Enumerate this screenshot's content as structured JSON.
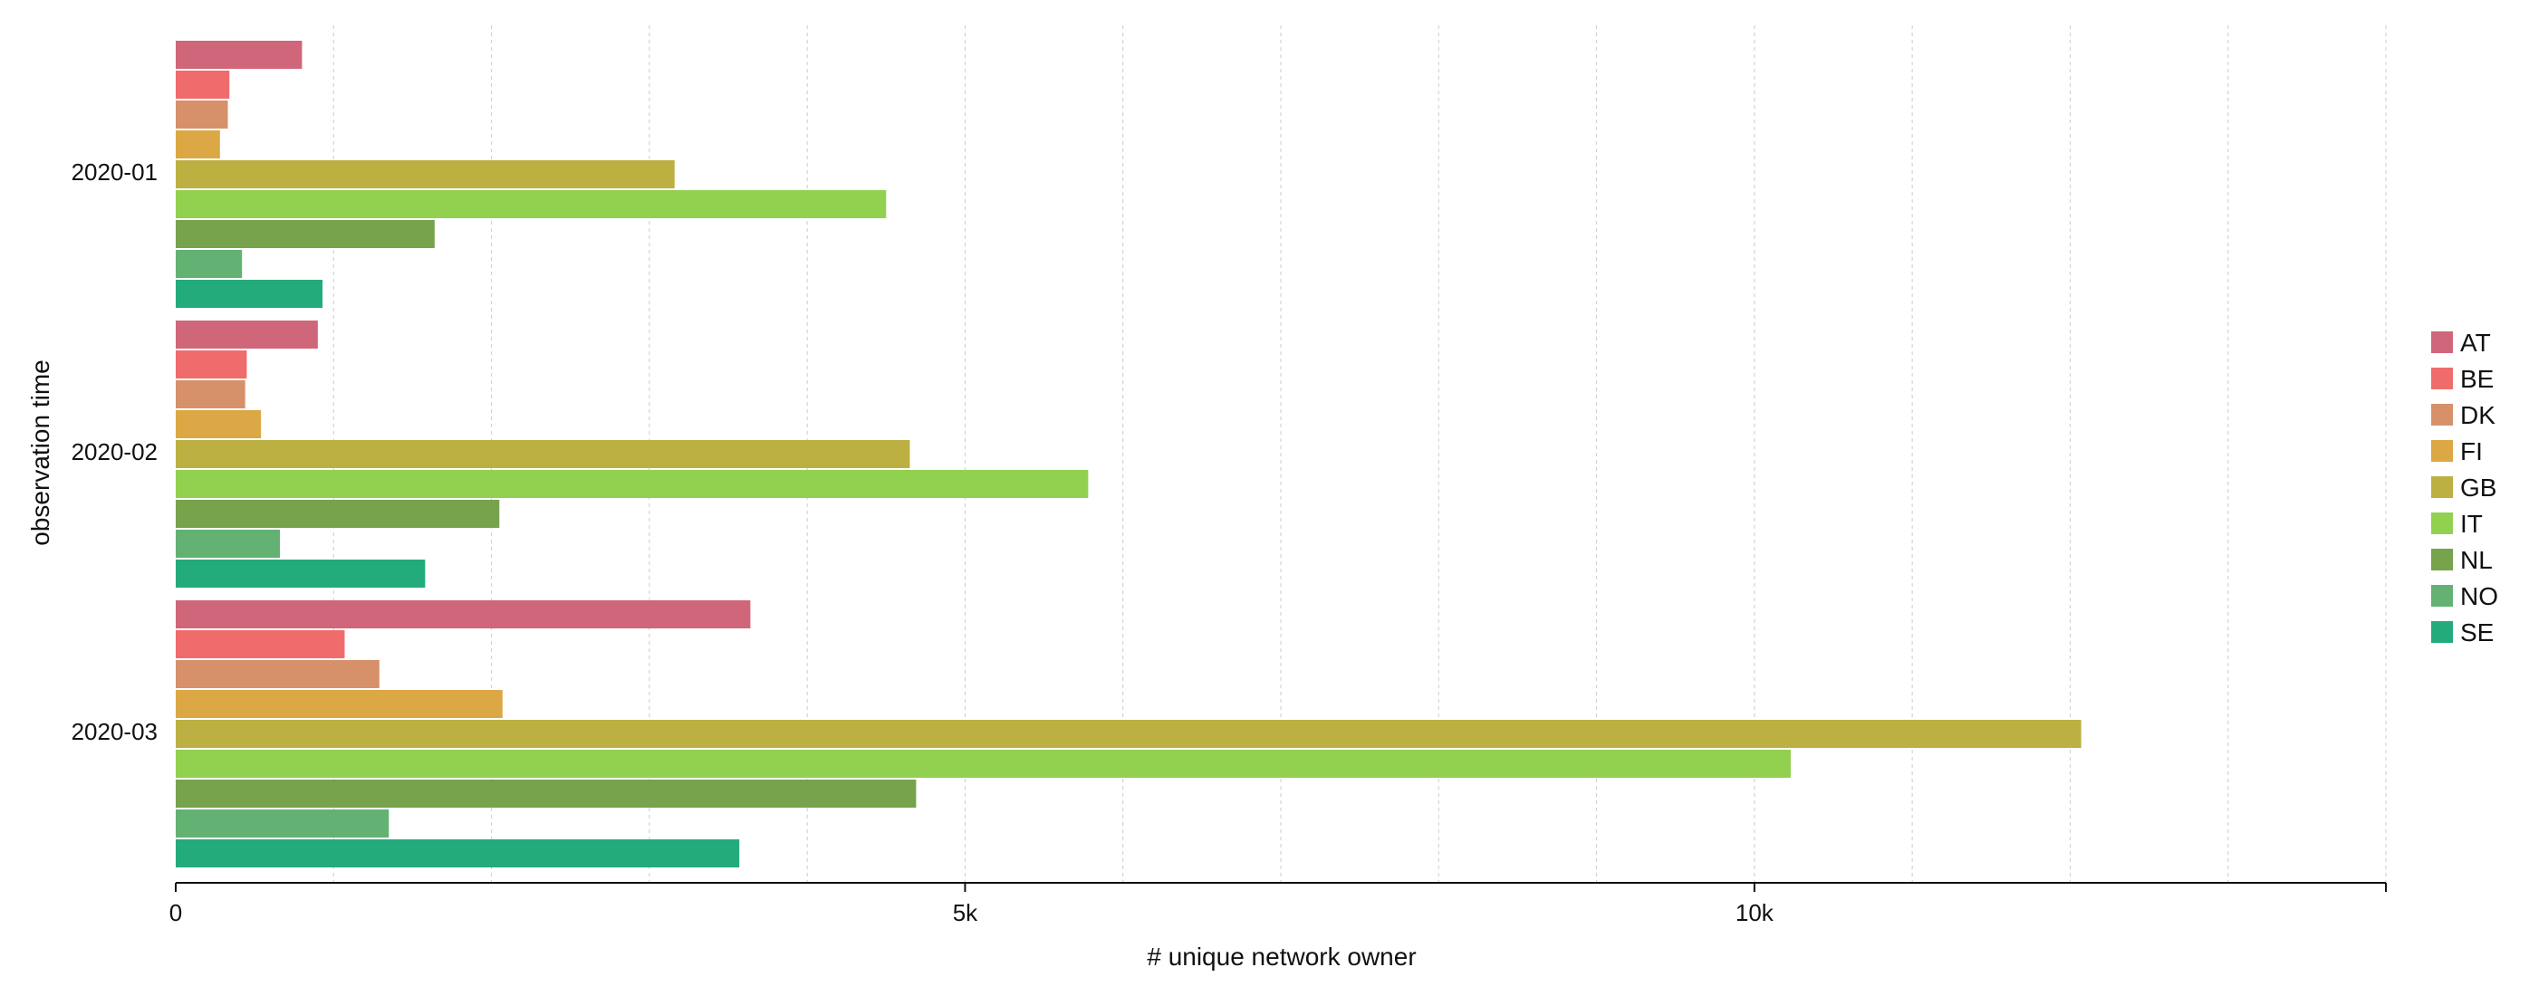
{
  "chart_data": {
    "type": "bar",
    "orientation": "horizontal",
    "categories": [
      "2020-01",
      "2020-02",
      "2020-03"
    ],
    "xlabel": "# unique network owner",
    "ylabel": "observation time",
    "xlim": [
      0,
      14000
    ],
    "x_ticks": [
      {
        "value": 0,
        "label": "0"
      },
      {
        "value": 5000,
        "label": "5k"
      },
      {
        "value": 10000,
        "label": "10k"
      }
    ],
    "grid": true,
    "grid_step": 1000,
    "legend_position": "right",
    "series": [
      {
        "name": "AT",
        "color": "#d0667a",
        "values": [
          800,
          900,
          3640
        ]
      },
      {
        "name": "BE",
        "color": "#f06c6c",
        "values": [
          340,
          450,
          1070
        ]
      },
      {
        "name": "DK",
        "color": "#d6916b",
        "values": [
          330,
          440,
          1290
        ]
      },
      {
        "name": "FI",
        "color": "#dca745",
        "values": [
          280,
          540,
          2070
        ]
      },
      {
        "name": "GB",
        "color": "#bdb042",
        "values": [
          3160,
          4650,
          12070
        ]
      },
      {
        "name": "IT",
        "color": "#92d050",
        "values": [
          4500,
          5780,
          10230
        ]
      },
      {
        "name": "NL",
        "color": "#76a34b",
        "values": [
          1640,
          2050,
          4690
        ]
      },
      {
        "name": "NO",
        "color": "#63b273",
        "values": [
          420,
          660,
          1350
        ]
      },
      {
        "name": "SE",
        "color": "#24ab7b",
        "values": [
          930,
          1580,
          3570
        ]
      }
    ]
  }
}
